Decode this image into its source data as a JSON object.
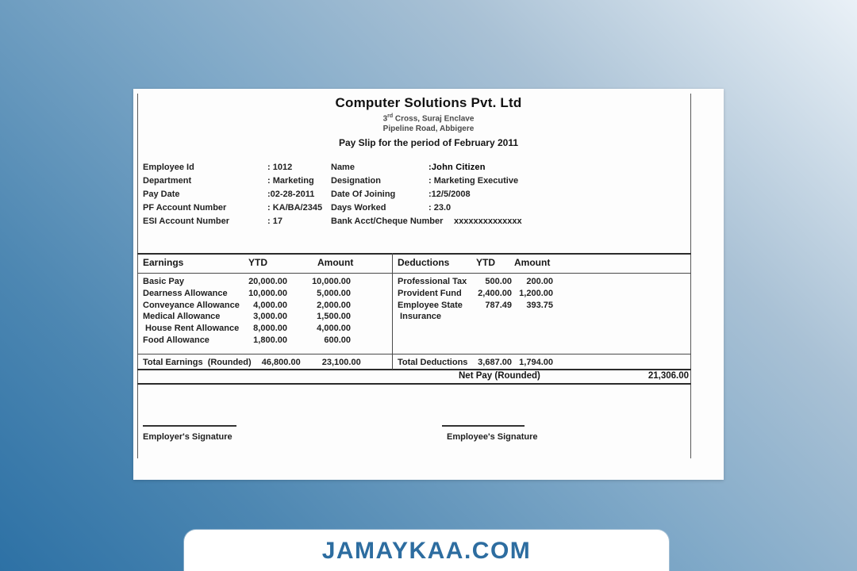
{
  "brand_color": "#2d6da0",
  "watermark": {
    "text": "JAMAYKAA.COM"
  },
  "payslip": {
    "company": {
      "name": "Computer Solutions Pvt. Ltd",
      "address_line1_num": "3",
      "address_line1_sup": "rd",
      "address_line1_rest": " Cross, Suraj Enclave",
      "address_line2": "Pipeline Road, Abbigere",
      "period_title": "Pay Slip for the period of February 2011"
    },
    "details": {
      "rows": [
        {
          "label1": "Employee Id",
          "value1": ": 1012",
          "label2": "Name",
          "value2": ":John Citizen"
        },
        {
          "label1": "Department",
          "value1": ": Marketing",
          "label2": "Designation",
          "value2": ": Marketing Executive"
        },
        {
          "label1": "Pay Date",
          "value1": ":02-28-2011",
          "label2": "Date Of Joining",
          "value2": ":12/5/2008"
        },
        {
          "label1": "PF Account Number",
          "value1": ": KA/BA/2345",
          "label2": "Days Worked",
          "value2": ": 23.0"
        },
        {
          "label1": "ESI Account Number",
          "value1": ": 17",
          "label2": "Bank Acct/Cheque Number",
          "value2": "xxxxxxxxxxxxxx"
        }
      ]
    },
    "table": {
      "earnings": {
        "header": {
          "title": "Earnings",
          "ytd": "YTD",
          "amount": "Amount"
        },
        "rows": [
          {
            "label": "Basic Pay",
            "ytd": "20,000.00",
            "amount": "10,000.00"
          },
          {
            "label": "Dearness Allowance",
            "ytd": "10,000.00",
            "amount": "5,000.00"
          },
          {
            "label": "Conveyance Allowance",
            "ytd": "4,000.00",
            "amount": "2,000.00"
          },
          {
            "label": "Medical Allowance",
            "ytd": "3,000.00",
            "amount": "1,500.00"
          },
          {
            "label": " House Rent Allowance",
            "ytd": "8,000.00",
            "amount": "4,000.00"
          },
          {
            "label": "Food Allowance",
            "ytd": "1,800.00",
            "amount": "600.00"
          }
        ],
        "total": {
          "label": "Total Earnings  (Rounded)",
          "ytd": "46,800.00",
          "amount": "23,100.00"
        }
      },
      "deductions": {
        "header": {
          "title": "Deductions",
          "ytd": "YTD",
          "amount": "Amount"
        },
        "rows": [
          {
            "label": "Professional Tax",
            "ytd": "500.00",
            "amount": "200.00"
          },
          {
            "label": "Provident Fund",
            "ytd": "2,400.00",
            "amount": "1,200.00"
          },
          {
            "label": "Employee State",
            "ytd": "787.49",
            "amount": "393.75"
          },
          {
            "label": " Insurance",
            "ytd": "",
            "amount": ""
          }
        ],
        "total": {
          "label": "Total Deductions",
          "ytd": "3,687.00",
          "amount": "1,794.00"
        }
      },
      "net_pay": {
        "label": "Net Pay (Rounded)",
        "value": "21,306.00"
      }
    },
    "signatures": {
      "employer": "Employer's Signature",
      "employee": "Employee's Signature"
    }
  }
}
